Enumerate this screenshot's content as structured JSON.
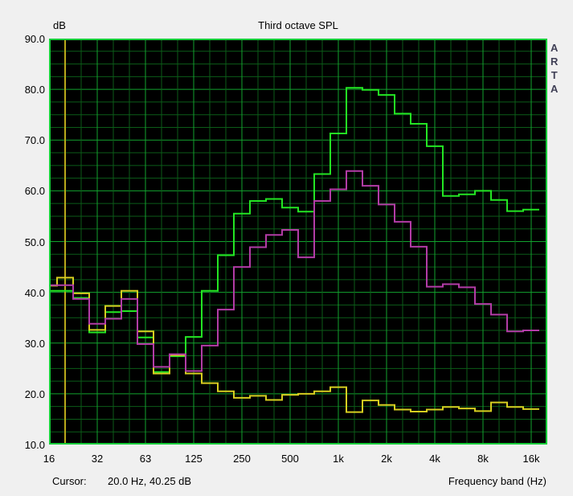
{
  "window": {
    "background": "#f0f0f0",
    "watermark": "ARTA"
  },
  "header": {
    "title": "Third octave SPL",
    "y_unit_label": "dB"
  },
  "status_bar": {
    "cursor_label": "Cursor:",
    "cursor_readout": "20.0 Hz, 40.25 dB",
    "x_axis_label": "Frequency band (Hz)"
  },
  "chart_data": {
    "type": "line",
    "subtype": "third-octave-step-spectrum",
    "title": "Third octave SPL",
    "xlabel": "Frequency band (Hz)",
    "ylabel": "dB",
    "ylim": [
      10,
      90
    ],
    "ytick_step_major_db": 10,
    "ytick_step_minor_db": 2.5,
    "grid": true,
    "legend_position": "none",
    "ytick_labels": [
      "90.0",
      "80.0",
      "70.0",
      "60.0",
      "50.0",
      "40.0",
      "30.0",
      "20.0",
      "10.0"
    ],
    "xtick_major_labels": [
      "16",
      "32",
      "63",
      "125",
      "250",
      "500",
      "1k",
      "2k",
      "4k",
      "8k",
      "16k"
    ],
    "band_frequencies_hz": [
      16,
      20,
      25,
      31.5,
      40,
      50,
      63,
      80,
      100,
      125,
      160,
      200,
      250,
      315,
      400,
      500,
      630,
      800,
      1000,
      1250,
      1600,
      2000,
      2500,
      3150,
      4000,
      5000,
      6300,
      8000,
      10000,
      12500,
      16000
    ],
    "series": [
      {
        "name": "green-curve",
        "color": "#23e523",
        "values": [
          40.3,
          40.3,
          38.9,
          32.1,
          36.1,
          36.3,
          31.1,
          24.3,
          27.4,
          31.2,
          40.3,
          47.3,
          55.5,
          58.0,
          58.4,
          56.7,
          55.9,
          63.3,
          71.3,
          80.3,
          79.9,
          78.9,
          75.2,
          73.2,
          68.8,
          59.0,
          59.3,
          60.0,
          58.2,
          56.0,
          56.3
        ]
      },
      {
        "name": "yellow-curve",
        "color": "#d6ce20",
        "values": [
          41.3,
          42.9,
          39.8,
          32.6,
          37.3,
          40.3,
          32.3,
          24.0,
          27.6,
          24.0,
          22.1,
          20.5,
          19.2,
          19.6,
          18.8,
          19.8,
          20.0,
          20.5,
          21.3,
          16.4,
          18.7,
          17.8,
          16.9,
          16.5,
          16.9,
          17.4,
          17.1,
          16.6,
          18.3,
          17.4,
          17.0
        ]
      },
      {
        "name": "magenta-curve",
        "color": "#b23ca6",
        "values": [
          41.4,
          41.4,
          38.7,
          33.8,
          34.8,
          38.7,
          29.8,
          25.3,
          27.8,
          24.5,
          29.5,
          36.6,
          45.0,
          48.9,
          51.3,
          52.3,
          46.9,
          58.0,
          60.3,
          63.9,
          61.0,
          57.3,
          53.9,
          49.0,
          41.1,
          41.6,
          41.0,
          37.7,
          35.6,
          32.3,
          32.5
        ]
      }
    ],
    "cursor": {
      "frequency_hz": 20.0,
      "value_db": 40.25,
      "band_index": 1,
      "line_color": "#b8a81a"
    },
    "colors": {
      "plot_background": "#000000",
      "grid_minor": "#0b5c18",
      "grid_major": "#12a22e",
      "plot_border": "#17cd3a"
    },
    "geometry_note": "31 third-octave bands, 3 bands per decade gridline group"
  }
}
